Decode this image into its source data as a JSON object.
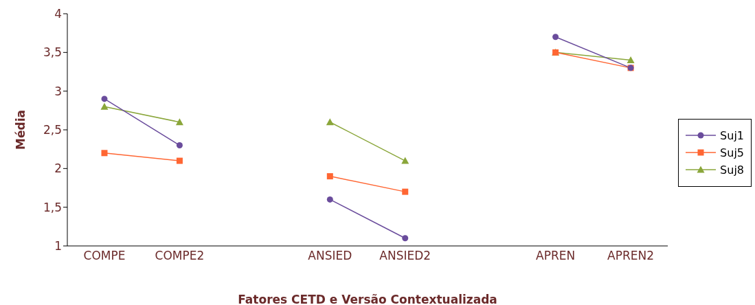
{
  "chart_data": {
    "type": "line",
    "xlabel": "Fatores CETD e Versão Contextualizada",
    "ylabel": "Média",
    "categories": [
      "COMPE",
      "COMPE2",
      null,
      "ANSIED",
      "ANSIED2",
      null,
      "APREN",
      "APREN2"
    ],
    "series": [
      {
        "name": "Suj1",
        "color": "#6a4c9c",
        "marker": "circle",
        "values": [
          2.9,
          2.3,
          null,
          1.6,
          1.1,
          null,
          3.7,
          3.3
        ]
      },
      {
        "name": "Suj5",
        "color": "#ff6633",
        "marker": "square",
        "values": [
          2.2,
          2.1,
          null,
          1.9,
          1.7,
          null,
          3.5,
          3.3
        ]
      },
      {
        "name": "Suj8",
        "color": "#8aa63a",
        "marker": "triangle",
        "values": [
          2.8,
          2.6,
          null,
          2.6,
          2.1,
          null,
          3.5,
          3.4
        ]
      }
    ],
    "ylim": [
      1,
      4
    ],
    "yticks": [
      1,
      {
        "value": 1.5,
        "label": "1,5"
      },
      2,
      {
        "value": 2.5,
        "label": "2,5"
      },
      3,
      {
        "value": 3.5,
        "label": "3,5"
      },
      4
    ],
    "grid": false,
    "legend": "right"
  }
}
